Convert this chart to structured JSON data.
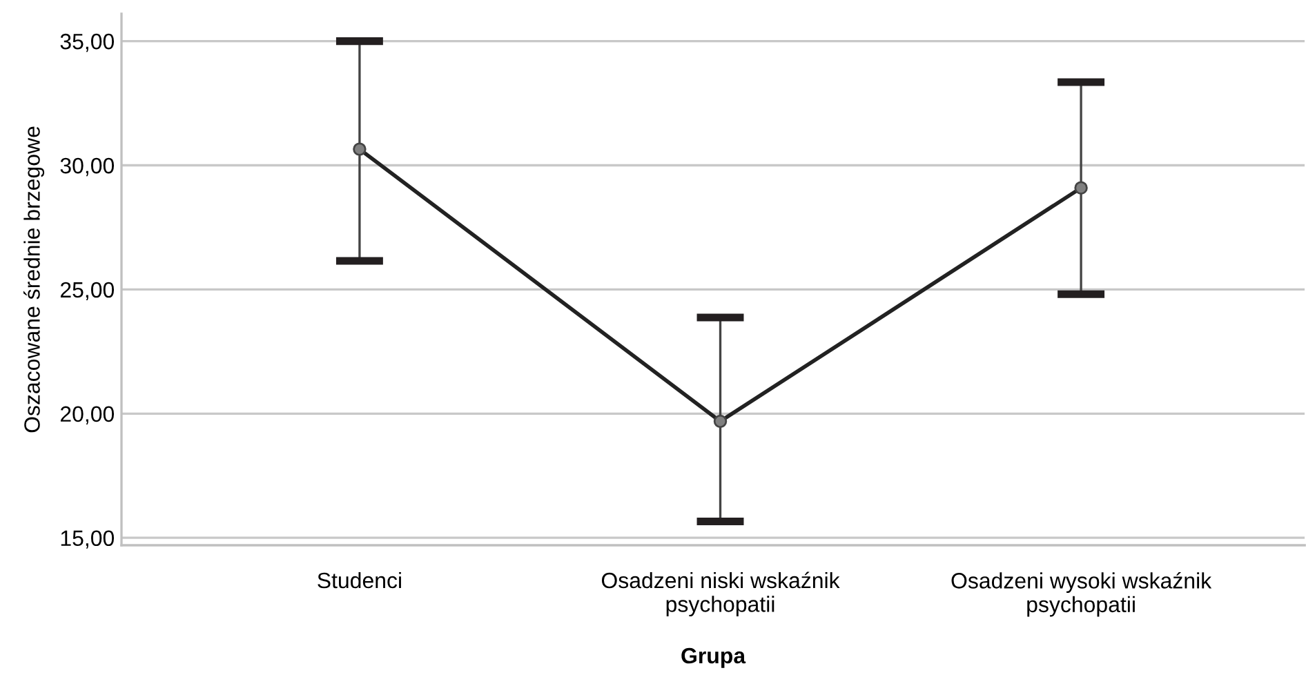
{
  "chart_data": {
    "type": "line",
    "xlabel": "Grupa",
    "ylabel": "Oszacowane średnie brzegowe",
    "categories": [
      "Studenci",
      "Osadzeni niski wskaźnik\npsychopatii",
      "Osadzeni wysoki wskaźnik\npsychopatii"
    ],
    "series": [
      {
        "color": "#222222",
        "values": [
          30.65,
          19.69,
          29.09
        ],
        "errors": [
          [
            26.15,
            35.0
          ],
          [
            15.66,
            23.87
          ],
          [
            24.81,
            33.35
          ]
        ]
      }
    ],
    "ylim": [
      14.7,
      36.1
    ],
    "yticks": [
      {
        "value": 15,
        "label": "15,00"
      },
      {
        "value": 20,
        "label": "20,00"
      },
      {
        "value": 25,
        "label": "25,00"
      },
      {
        "value": 30,
        "label": "30,00"
      },
      {
        "value": 35,
        "label": "35,00"
      }
    ],
    "grid": "y",
    "marker": "circle",
    "line_style": "solid",
    "legend": false
  }
}
